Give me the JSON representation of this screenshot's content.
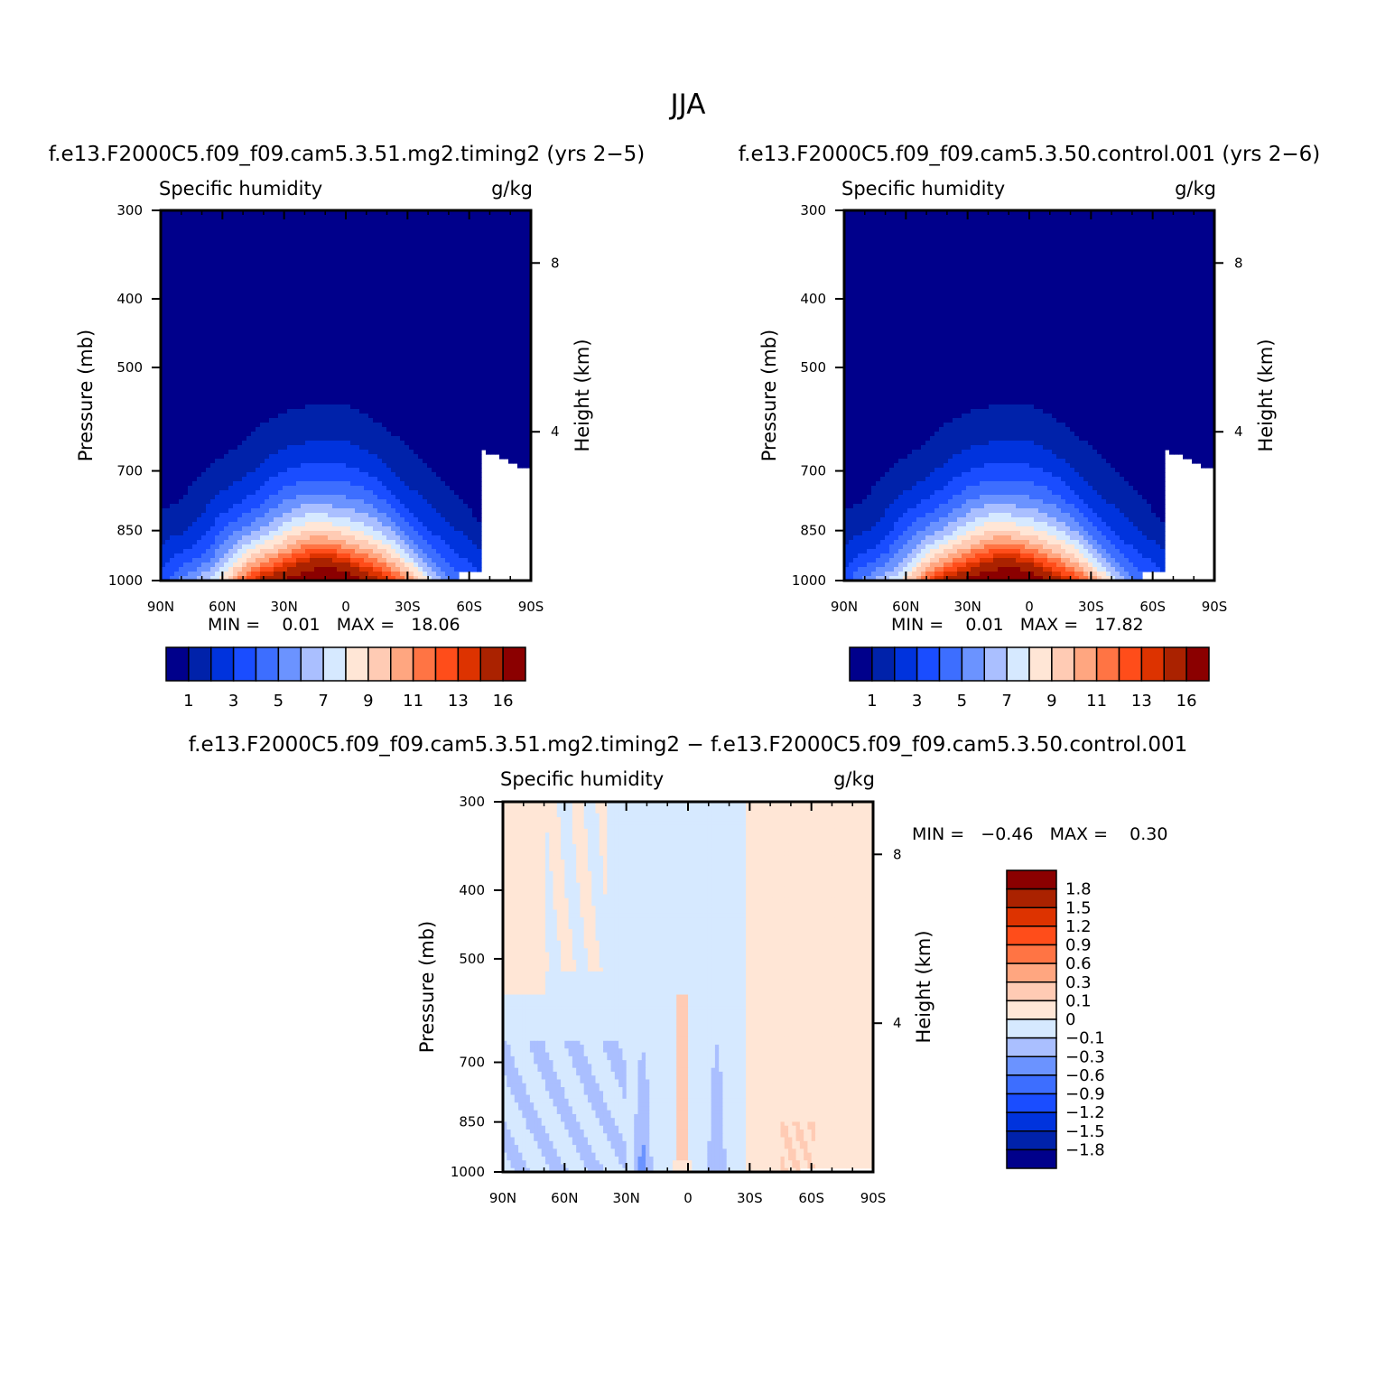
{
  "page_title": "JJA",
  "chart_data": [
    {
      "type": "contour",
      "title": "f.e13.F2000C5.f09_f09.cam5.3.51.mg2.timing2 (yrs 2−5)",
      "variable": "Specific humidity",
      "units": "g/kg",
      "xlabel": "",
      "ylabel": "Pressure (mb)",
      "ylabel_right": "Height (km)",
      "x_tick_labels": [
        "90N",
        "60N",
        "30N",
        "0",
        "30S",
        "60S",
        "90S"
      ],
      "x_ticks": [
        90,
        60,
        30,
        0,
        -30,
        -60,
        -90
      ],
      "y_tick_labels": [
        "300",
        "400",
        "500",
        "700",
        "850",
        "1000"
      ],
      "y_ticks": [
        300,
        400,
        500,
        700,
        850,
        1000
      ],
      "y_right_tick_labels": [
        "8",
        "4"
      ],
      "y_right_ticks": [
        8,
        4
      ],
      "xlim": [
        90,
        -90
      ],
      "ylim": [
        1000,
        300
      ],
      "stats_text": "MIN =    0.01   MAX =   18.06",
      "min": 0.01,
      "max": 18.06,
      "colorbar_labels": [
        "1",
        "3",
        "5",
        "7",
        "9",
        "11",
        "13",
        "16"
      ]
    },
    {
      "type": "contour",
      "title": "f.e13.F2000C5.f09_f09.cam5.3.50.control.001 (yrs 2−6)",
      "variable": "Specific humidity",
      "units": "g/kg",
      "xlabel": "",
      "ylabel": "Pressure (mb)",
      "ylabel_right": "Height (km)",
      "x_tick_labels": [
        "90N",
        "60N",
        "30N",
        "0",
        "30S",
        "60S",
        "90S"
      ],
      "x_ticks": [
        90,
        60,
        30,
        0,
        -30,
        -60,
        -90
      ],
      "y_tick_labels": [
        "300",
        "400",
        "500",
        "700",
        "850",
        "1000"
      ],
      "y_ticks": [
        300,
        400,
        500,
        700,
        850,
        1000
      ],
      "y_right_tick_labels": [
        "8",
        "4"
      ],
      "y_right_ticks": [
        8,
        4
      ],
      "xlim": [
        90,
        -90
      ],
      "ylim": [
        1000,
        300
      ],
      "stats_text": "MIN =    0.01   MAX =   17.82",
      "min": 0.01,
      "max": 17.82,
      "colorbar_labels": [
        "1",
        "3",
        "5",
        "7",
        "9",
        "11",
        "13",
        "16"
      ]
    },
    {
      "type": "contour",
      "title": "f.e13.F2000C5.f09_f09.cam5.3.51.mg2.timing2 − f.e13.F2000C5.f09_f09.cam5.3.50.control.001",
      "variable": "Specific humidity",
      "units": "g/kg",
      "xlabel": "",
      "ylabel": "Pressure (mb)",
      "ylabel_right": "Height (km)",
      "x_tick_labels": [
        "90N",
        "60N",
        "30N",
        "0",
        "30S",
        "60S",
        "90S"
      ],
      "x_ticks": [
        90,
        60,
        30,
        0,
        -30,
        -60,
        -90
      ],
      "y_tick_labels": [
        "300",
        "400",
        "500",
        "700",
        "850",
        "1000"
      ],
      "y_ticks": [
        300,
        400,
        500,
        700,
        850,
        1000
      ],
      "y_right_tick_labels": [
        "8",
        "4"
      ],
      "y_right_ticks": [
        8,
        4
      ],
      "xlim": [
        90,
        -90
      ],
      "ylim": [
        1000,
        300
      ],
      "stats_text": "MIN =   −0.46   MAX =    0.30",
      "min": -0.46,
      "max": 0.3,
      "colorbar_labels": [
        "1.8",
        "1.5",
        "1.2",
        "0.9",
        "0.6",
        "0.3",
        "0.1",
        "0",
        "−0.1",
        "−0.3",
        "−0.6",
        "−0.9",
        "−1.2",
        "−1.5",
        "−1.8"
      ]
    }
  ],
  "colors": {
    "scale16": [
      "#00008b",
      "#0022aa",
      "#0033dd",
      "#1a4dff",
      "#3d6eff",
      "#6b93ff",
      "#aabfff",
      "#d6e9ff",
      "#ffe6d6",
      "#ffcbb4",
      "#ffa680",
      "#ff7444",
      "#ff4d1a",
      "#dd3300",
      "#aa2200",
      "#8b0000"
    ],
    "diff_spectrum": [
      "#00008b",
      "#0022aa",
      "#0033dd",
      "#1a4dff",
      "#3d6eff",
      "#6b93ff",
      "#aabfff",
      "#d6e9ff",
      "#ffe6d6",
      "#ffcbb4",
      "#ffa680",
      "#ff7444",
      "#ff4d1a",
      "#dd3300",
      "#aa2200",
      "#8b0000"
    ]
  }
}
